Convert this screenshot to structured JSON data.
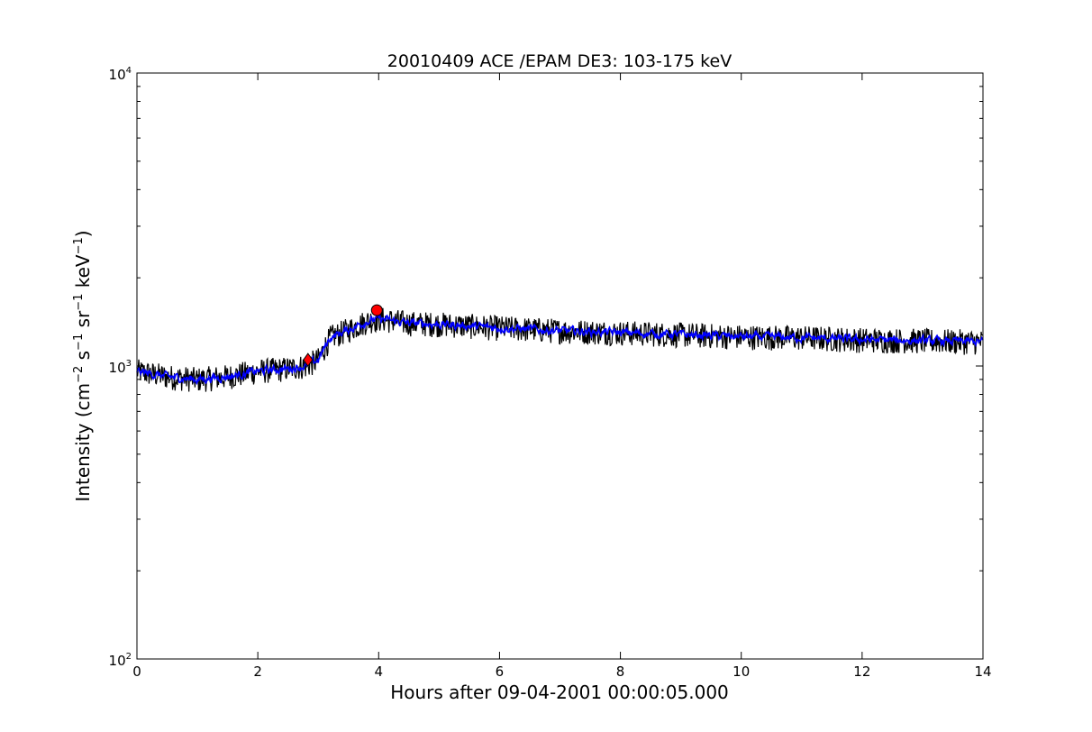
{
  "chart_data": {
    "type": "line",
    "title": "20010409 ACE /EPAM DE3: 103-175 keV",
    "xlabel": "Hours after 09-04-2001 00:00:05.000",
    "ylabel": {
      "prefix": "Intensity (cm",
      "exp_cm": "−2",
      "s": " s",
      "exp_s": "−1",
      "sr": " sr",
      "exp_sr": "−1",
      "kev": " keV",
      "exp_kev": "−1",
      "suffix": ")"
    },
    "xlim": [
      0,
      14
    ],
    "ylim": [
      100,
      10000
    ],
    "yscale": "log",
    "x_ticks": [
      0,
      2,
      4,
      6,
      8,
      10,
      12,
      14
    ],
    "x_tick_labels": [
      "0",
      "2",
      "4",
      "6",
      "8",
      "10",
      "12",
      "14"
    ],
    "y_ticks": [
      100,
      1000,
      10000
    ],
    "y_tick_labels": [
      {
        "base": "10",
        "exp": "2"
      },
      {
        "base": "10",
        "exp": "3"
      },
      {
        "base": "10",
        "exp": "4"
      }
    ],
    "grid": false,
    "series": [
      {
        "color": "#000000",
        "style": "raw",
        "x": [
          0,
          0.5,
          1.0,
          1.5,
          2.0,
          2.5,
          2.8,
          3.0,
          3.2,
          3.5,
          3.8,
          4.0,
          4.5,
          5.0,
          5.5,
          6.0,
          7.0,
          8.0,
          9.0,
          10.0,
          11.0,
          12.0,
          13.0,
          14.0
        ],
        "values": [
          960,
          920,
          900,
          920,
          960,
          980,
          1000,
          1050,
          1250,
          1330,
          1420,
          1450,
          1400,
          1390,
          1370,
          1350,
          1320,
          1300,
          1280,
          1260,
          1250,
          1230,
          1220,
          1210
        ],
        "noise_fraction": 0.1
      },
      {
        "color": "#0000ff",
        "style": "smoothed",
        "x": [
          0,
          0.5,
          1.0,
          1.5,
          2.0,
          2.5,
          2.8,
          3.0,
          3.2,
          3.5,
          3.8,
          4.0,
          4.5,
          5.0,
          5.5,
          6.0,
          7.0,
          8.0,
          9.0,
          10.0,
          11.0,
          12.0,
          13.0,
          14.0
        ],
        "values": [
          960,
          920,
          900,
          920,
          960,
          980,
          1000,
          1050,
          1250,
          1330,
          1420,
          1450,
          1400,
          1390,
          1370,
          1350,
          1320,
          1300,
          1280,
          1260,
          1250,
          1230,
          1220,
          1210
        ],
        "noise_fraction": 0.035
      }
    ],
    "markers": [
      {
        "shape": "diamond",
        "color": "#ff0000",
        "x": 2.83,
        "y": 1050
      },
      {
        "shape": "circle",
        "color": "#ff0000",
        "x": 3.97,
        "y": 1550
      }
    ]
  }
}
